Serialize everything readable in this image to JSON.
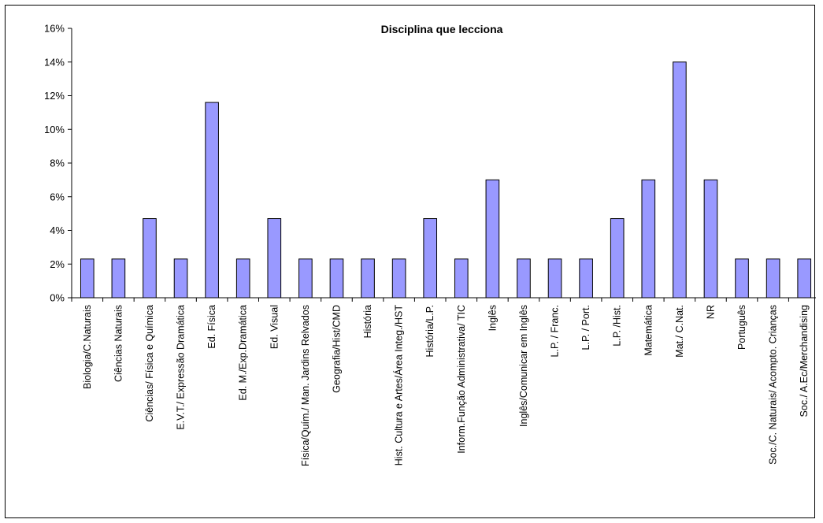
{
  "chart_data": {
    "type": "bar",
    "title": "Disciplina que lecciona",
    "xlabel": "",
    "ylabel": "",
    "ylim": [
      0,
      16
    ],
    "y_ticks": [
      "0%",
      "2%",
      "4%",
      "6%",
      "8%",
      "10%",
      "12%",
      "14%",
      "16%"
    ],
    "y_tick_values": [
      0,
      2,
      4,
      6,
      8,
      10,
      12,
      14,
      16
    ],
    "grid": false,
    "legend": "none",
    "bar_color": "#9999ff",
    "categories": [
      "Biologia/C.Naturais",
      "Ciências Naturais",
      "Ciências/ Física e Química",
      "E.V.T./ Expressão Dramática",
      "Ed. Física",
      "Ed. M./Exp.Dramática",
      "Ed. Visual",
      "Física/Quím./ Man. Jardins Relvados",
      "Geografia/Hist/CMD",
      "História",
      "Hist. Cultura e Artes/Área Integ./HST",
      "História/L.P.",
      "Inform.Função Administrativa/ TIC",
      "Inglês",
      "Inglês/Comunicar em Inglês",
      "L.P. / Franc.",
      "L.P. / Port.",
      "L.P. /Hist.",
      "Matemática",
      "Mat./ C.Nat.",
      "NR",
      "Português",
      "Soc./C. Naturais/ Acompto. Crianças",
      "Soc./ A.Ec/Merchandising"
    ],
    "values": [
      2.3,
      2.3,
      4.7,
      2.3,
      11.6,
      2.3,
      4.7,
      2.3,
      2.3,
      2.3,
      2.3,
      4.7,
      2.3,
      7.0,
      2.3,
      2.3,
      2.3,
      4.7,
      7.0,
      14.0,
      7.0,
      2.3,
      2.3,
      2.3
    ]
  }
}
